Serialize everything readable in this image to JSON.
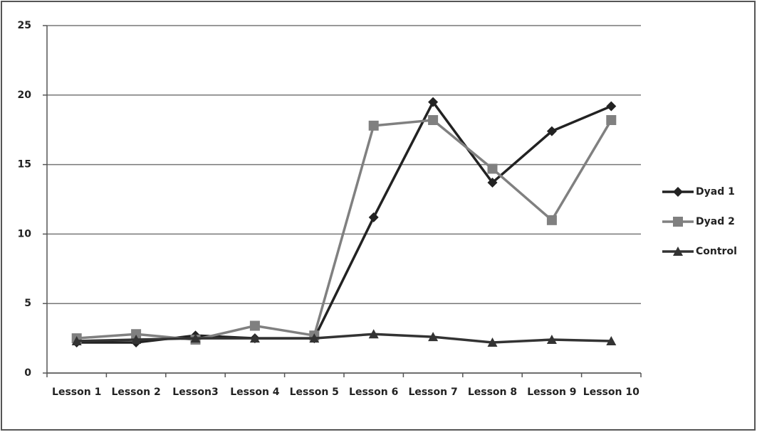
{
  "chart_data": {
    "type": "line",
    "categories": [
      "Lesson 1",
      "Lesson 2",
      "Lesson3",
      "Lesson 4",
      "Lesson 5",
      "Lesson 6",
      "Lesson 7",
      "Lesson 8",
      "Lesson 9",
      "Lesson 10"
    ],
    "series": [
      {
        "name": "Dyad 1",
        "color": "#222222",
        "marker": "diamond",
        "values": [
          2.2,
          2.2,
          2.7,
          2.5,
          2.5,
          11.2,
          19.5,
          13.7,
          17.4,
          19.2
        ]
      },
      {
        "name": "Dyad 2",
        "color": "#808080",
        "marker": "square",
        "values": [
          2.5,
          2.8,
          2.4,
          3.4,
          2.7,
          17.8,
          18.2,
          14.7,
          11.0,
          18.2
        ]
      },
      {
        "name": "Control",
        "color": "#333333",
        "marker": "triangle",
        "values": [
          2.3,
          2.4,
          2.5,
          2.5,
          2.5,
          2.8,
          2.6,
          2.2,
          2.4,
          2.3
        ]
      }
    ],
    "ylim": [
      0,
      25
    ],
    "yticks": [
      0,
      5,
      10,
      15,
      20,
      25
    ],
    "grid": true,
    "legend": "right"
  }
}
